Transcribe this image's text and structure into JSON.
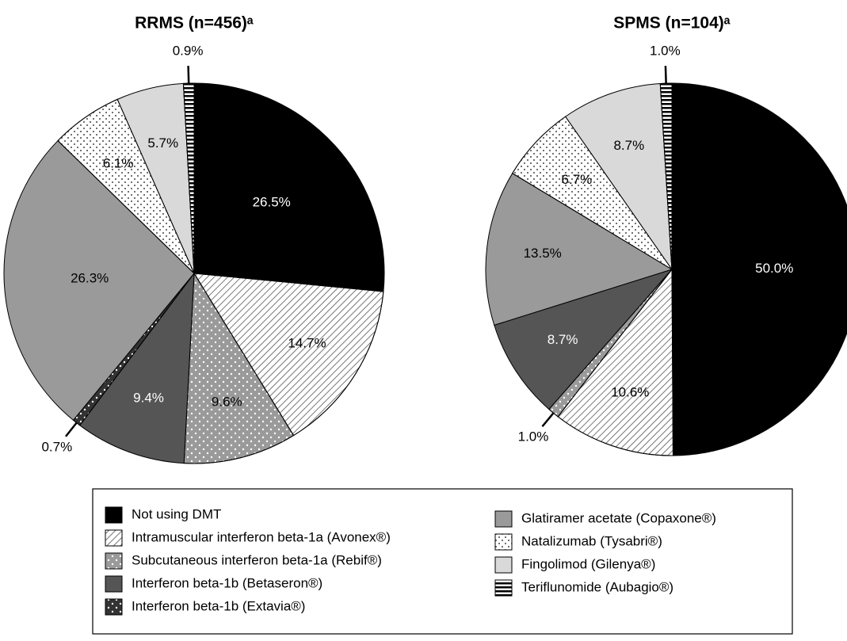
{
  "chart_data": [
    {
      "type": "pie",
      "title": "RRMS (n=456)ᵃ",
      "categories": [
        "Not using DMT",
        "Intramuscular interferon beta-1a (Avonex®)",
        "Subcutaneous interferon beta-1a (Rebif®)",
        "Interferon beta-1b (Betaseron®)",
        "Interferon beta-1b (Extavia®)",
        "Glatiramer acetate (Copaxone®)",
        "Natalizumab (Tysabri®)",
        "Fingolimod (Gilenya®)",
        "Teriflunomide (Aubagio®)"
      ],
      "values": [
        26.5,
        14.7,
        9.6,
        9.4,
        0.7,
        26.3,
        6.1,
        5.7,
        0.9
      ],
      "value_labels": [
        "26.5%",
        "14.7%",
        "9.6%",
        "9.4%",
        "0.7%",
        "26.3%",
        "6.1%",
        "5.7%",
        "0.9%"
      ],
      "colors": [
        "#000000",
        "#ffffff",
        "#9a9a9a",
        "#555555",
        "#333333",
        "#9a9a9a",
        "#ffffff",
        "#d9d9d9",
        "#ffffff"
      ],
      "patterns": [
        "solid",
        "hatch",
        "dots-white",
        "solid",
        "dots-white",
        "solid",
        "dots-black",
        "solid",
        "stripes"
      ]
    },
    {
      "type": "pie",
      "title": "SPMS (n=104)ᵃ",
      "categories": [
        "Not using DMT",
        "Intramuscular interferon beta-1a (Avonex®)",
        "Subcutaneous interferon beta-1a (Rebif®)",
        "Interferon beta-1b (Betaseron®)",
        "Glatiramer acetate (Copaxone®)",
        "Natalizumab (Tysabri®)",
        "Fingolimod (Gilenya®)",
        "Teriflunomide (Aubagio®)"
      ],
      "values": [
        50.0,
        10.6,
        1.0,
        8.7,
        13.5,
        6.7,
        8.7,
        1.0
      ],
      "value_labels": [
        "50.0%",
        "10.6%",
        "1.0%",
        "8.7%",
        "13.5%",
        "6.7%",
        "8.7%",
        "1.0%"
      ],
      "colors": [
        "#000000",
        "#ffffff",
        "#9a9a9a",
        "#555555",
        "#9a9a9a",
        "#ffffff",
        "#d9d9d9",
        "#ffffff"
      ],
      "patterns": [
        "solid",
        "hatch",
        "dots-white",
        "solid",
        "solid",
        "dots-black",
        "solid",
        "stripes"
      ]
    }
  ]
}
